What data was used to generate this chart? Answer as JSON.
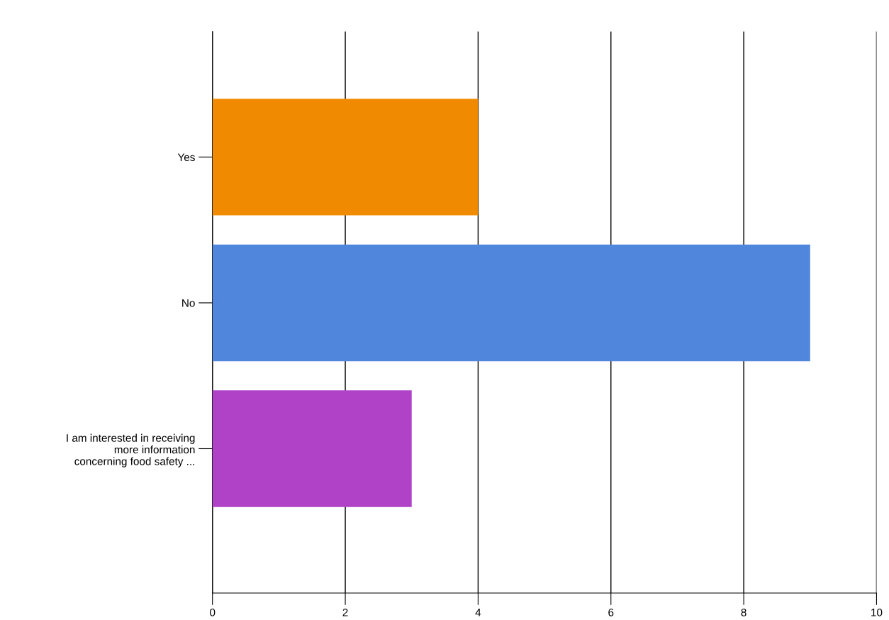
{
  "chart_data": {
    "type": "bar",
    "orientation": "horizontal",
    "categories": [
      "Yes",
      "No",
      "I am interested in receiving\nmore information\nconcerning food safety ..."
    ],
    "values": [
      4,
      9,
      3
    ],
    "colors": [
      "#f08a00",
      "#5086dc",
      "#b042c8"
    ],
    "xlim": [
      0,
      10
    ],
    "xticks": [
      0,
      2,
      4,
      6,
      8,
      10
    ],
    "grid": "x"
  }
}
